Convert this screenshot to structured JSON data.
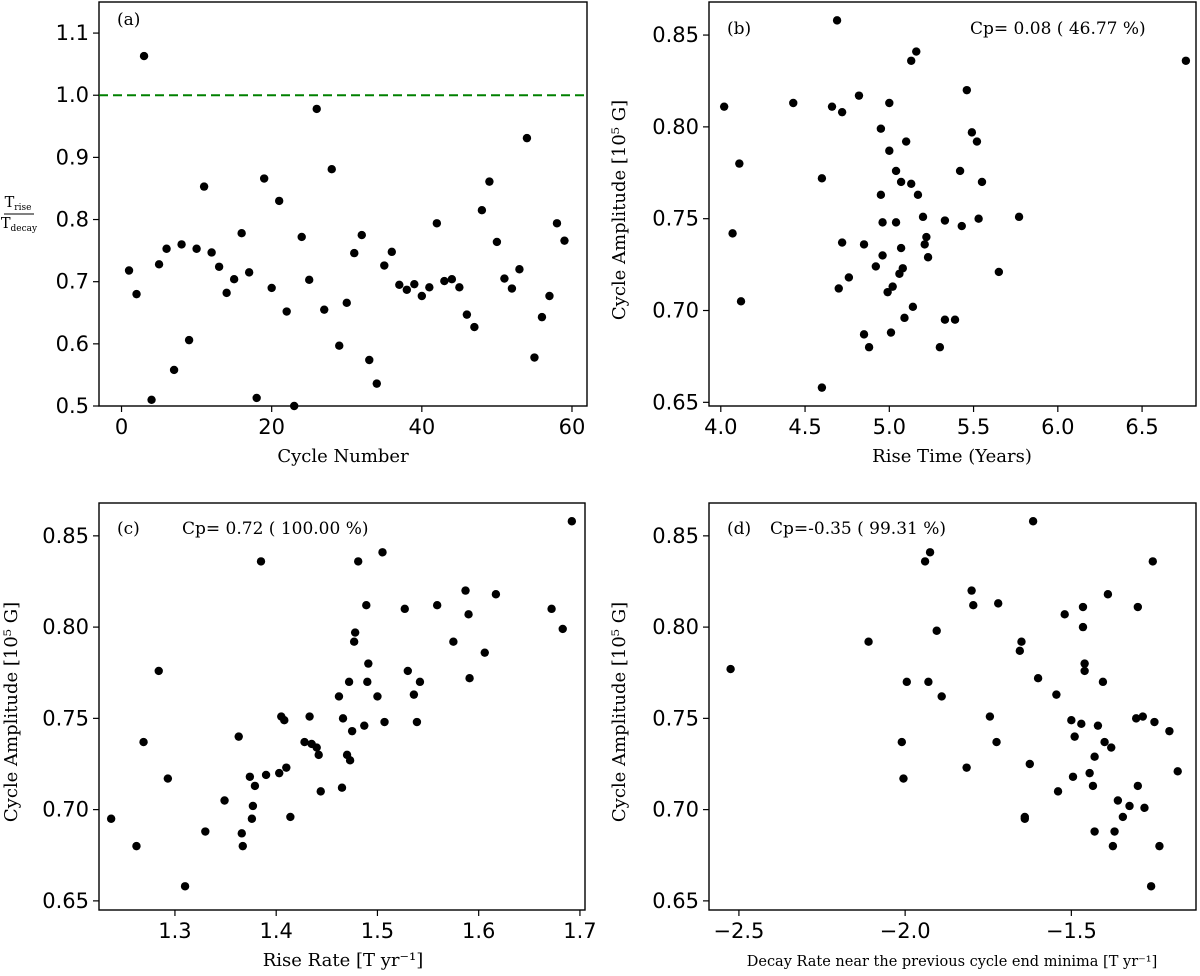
{
  "chart_data": [
    {
      "id": "a",
      "type": "scatter",
      "panel_label": "(a)",
      "annotation": "",
      "xlabel": "Cycle Number",
      "ylabel_num": "T",
      "ylabel_num_sub": "rise",
      "ylabel_den": "T",
      "ylabel_den_sub": "decay",
      "xlim": [
        -3,
        62
      ],
      "ylim": [
        0.5,
        1.15
      ],
      "xticks": [
        0,
        20,
        40,
        60
      ],
      "xtick_labels": [
        "0",
        "20",
        "40",
        "60"
      ],
      "yticks": [
        0.5,
        0.6,
        0.7,
        0.8,
        0.9,
        1.0,
        1.1
      ],
      "ytick_labels": [
        "0.5",
        "0.6",
        "0.7",
        "0.8",
        "0.9",
        "1.0",
        "1.1"
      ],
      "reference_line": {
        "y": 1.0,
        "color": "#008000",
        "style": "dashed"
      },
      "points": [
        [
          1,
          0.718
        ],
        [
          2,
          0.68
        ],
        [
          3,
          1.063
        ],
        [
          4,
          0.51
        ],
        [
          5,
          0.728
        ],
        [
          6,
          0.753
        ],
        [
          7,
          0.558
        ],
        [
          8,
          0.76
        ],
        [
          9,
          0.606
        ],
        [
          10,
          0.753
        ],
        [
          11,
          0.853
        ],
        [
          12,
          0.747
        ],
        [
          13,
          0.724
        ],
        [
          14,
          0.682
        ],
        [
          15,
          0.704
        ],
        [
          16,
          0.778
        ],
        [
          17,
          0.715
        ],
        [
          18,
          0.513
        ],
        [
          19,
          0.866
        ],
        [
          20,
          0.69
        ],
        [
          21,
          0.83
        ],
        [
          22,
          0.652
        ],
        [
          23,
          0.5
        ],
        [
          24,
          0.772
        ],
        [
          25,
          0.703
        ],
        [
          26,
          0.978
        ],
        [
          27,
          0.655
        ],
        [
          28,
          0.881
        ],
        [
          29,
          0.597
        ],
        [
          30,
          0.666
        ],
        [
          31,
          0.746
        ],
        [
          32,
          0.775
        ],
        [
          33,
          0.574
        ],
        [
          34,
          0.536
        ],
        [
          35,
          0.726
        ],
        [
          36,
          0.748
        ],
        [
          37,
          0.695
        ],
        [
          38,
          0.687
        ],
        [
          39,
          0.696
        ],
        [
          40,
          0.677
        ],
        [
          41,
          0.691
        ],
        [
          42,
          0.794
        ],
        [
          43,
          0.701
        ],
        [
          44,
          0.704
        ],
        [
          45,
          0.691
        ],
        [
          46,
          0.647
        ],
        [
          47,
          0.627
        ],
        [
          48,
          0.815
        ],
        [
          49,
          0.861
        ],
        [
          50,
          0.764
        ],
        [
          51,
          0.705
        ],
        [
          52,
          0.689
        ],
        [
          53,
          0.72
        ],
        [
          54,
          0.931
        ],
        [
          55,
          0.578
        ],
        [
          56,
          0.643
        ],
        [
          57,
          0.677
        ],
        [
          58,
          0.794
        ],
        [
          59,
          0.766
        ]
      ]
    },
    {
      "id": "b",
      "type": "scatter",
      "panel_label": "(b)",
      "annotation": "Cp= 0.08 ( 46.77 %)",
      "xlabel": "Rise Time (Years)",
      "ylabel": "Cycle Amplitude [10⁵ G]",
      "xlim": [
        3.93,
        6.82
      ],
      "ylim": [
        0.648,
        0.868
      ],
      "xticks": [
        4.0,
        4.5,
        5.0,
        5.5,
        6.0,
        6.5
      ],
      "xtick_labels": [
        "4.0",
        "4.5",
        "5.0",
        "5.5",
        "6.0",
        "6.5"
      ],
      "yticks": [
        0.65,
        0.7,
        0.75,
        0.8,
        0.85
      ],
      "ytick_labels": [
        "0.65",
        "0.70",
        "0.75",
        "0.80",
        "0.85"
      ],
      "points": [
        [
          4.02,
          0.811
        ],
        [
          4.07,
          0.742
        ],
        [
          4.11,
          0.78
        ],
        [
          4.12,
          0.705
        ],
        [
          4.43,
          0.813
        ],
        [
          4.6,
          0.772
        ],
        [
          4.6,
          0.658
        ],
        [
          4.66,
          0.811
        ],
        [
          4.69,
          0.858
        ],
        [
          4.7,
          0.712
        ],
        [
          4.72,
          0.808
        ],
        [
          4.72,
          0.737
        ],
        [
          4.76,
          0.718
        ],
        [
          4.82,
          0.817
        ],
        [
          4.85,
          0.687
        ],
        [
          4.85,
          0.736
        ],
        [
          4.88,
          0.68
        ],
        [
          4.92,
          0.724
        ],
        [
          4.95,
          0.799
        ],
        [
          4.95,
          0.763
        ],
        [
          4.96,
          0.748
        ],
        [
          4.96,
          0.73
        ],
        [
          4.99,
          0.71
        ],
        [
          5.0,
          0.813
        ],
        [
          5.0,
          0.787
        ],
        [
          5.01,
          0.688
        ],
        [
          5.02,
          0.713
        ],
        [
          5.04,
          0.776
        ],
        [
          5.04,
          0.748
        ],
        [
          5.06,
          0.72
        ],
        [
          5.07,
          0.77
        ],
        [
          5.07,
          0.734
        ],
        [
          5.08,
          0.723
        ],
        [
          5.09,
          0.696
        ],
        [
          5.1,
          0.792
        ],
        [
          5.13,
          0.836
        ],
        [
          5.13,
          0.769
        ],
        [
          5.14,
          0.702
        ],
        [
          5.16,
          0.841
        ],
        [
          5.17,
          0.763
        ],
        [
          5.2,
          0.751
        ],
        [
          5.21,
          0.736
        ],
        [
          5.22,
          0.74
        ],
        [
          5.23,
          0.729
        ],
        [
          5.3,
          0.68
        ],
        [
          5.33,
          0.695
        ],
        [
          5.33,
          0.749
        ],
        [
          5.39,
          0.695
        ],
        [
          5.42,
          0.776
        ],
        [
          5.43,
          0.746
        ],
        [
          5.46,
          0.82
        ],
        [
          5.49,
          0.797
        ],
        [
          5.52,
          0.792
        ],
        [
          5.53,
          0.75
        ],
        [
          5.55,
          0.77
        ],
        [
          5.65,
          0.721
        ],
        [
          5.77,
          0.751
        ],
        [
          6.76,
          0.836
        ]
      ]
    },
    {
      "id": "c",
      "type": "scatter",
      "panel_label": "(c)",
      "annotation": "Cp= 0.72 ( 100.00 %)",
      "xlabel": "Rise Rate [T yr⁻¹]",
      "ylabel": "Cycle Amplitude [10⁵ G]",
      "xlim": [
        1.225,
        1.705
      ],
      "ylim": [
        0.645,
        0.868
      ],
      "xticks": [
        1.3,
        1.4,
        1.5,
        1.6,
        1.7
      ],
      "xtick_labels": [
        "1.3",
        "1.4",
        "1.5",
        "1.6",
        "1.7"
      ],
      "yticks": [
        0.65,
        0.7,
        0.75,
        0.8,
        0.85
      ],
      "ytick_labels": [
        "0.65",
        "0.70",
        "0.75",
        "0.80",
        "0.85"
      ],
      "points": [
        [
          1.237,
          0.695
        ],
        [
          1.262,
          0.68
        ],
        [
          1.269,
          0.737
        ],
        [
          1.284,
          0.776
        ],
        [
          1.293,
          0.717
        ],
        [
          1.31,
          0.658
        ],
        [
          1.33,
          0.688
        ],
        [
          1.349,
          0.705
        ],
        [
          1.363,
          0.74
        ],
        [
          1.366,
          0.687
        ],
        [
          1.367,
          0.68
        ],
        [
          1.374,
          0.718
        ],
        [
          1.376,
          0.695
        ],
        [
          1.377,
          0.702
        ],
        [
          1.379,
          0.713
        ],
        [
          1.385,
          0.836
        ],
        [
          1.39,
          0.719
        ],
        [
          1.403,
          0.72
        ],
        [
          1.405,
          0.751
        ],
        [
          1.408,
          0.749
        ],
        [
          1.41,
          0.723
        ],
        [
          1.414,
          0.696
        ],
        [
          1.428,
          0.737
        ],
        [
          1.433,
          0.751
        ],
        [
          1.435,
          0.736
        ],
        [
          1.44,
          0.734
        ],
        [
          1.442,
          0.73
        ],
        [
          1.444,
          0.71
        ],
        [
          1.462,
          0.762
        ],
        [
          1.465,
          0.712
        ],
        [
          1.466,
          0.75
        ],
        [
          1.47,
          0.73
        ],
        [
          1.472,
          0.77
        ],
        [
          1.473,
          0.727
        ],
        [
          1.475,
          0.743
        ],
        [
          1.477,
          0.792
        ],
        [
          1.478,
          0.797
        ],
        [
          1.481,
          0.836
        ],
        [
          1.487,
          0.746
        ],
        [
          1.489,
          0.812
        ],
        [
          1.49,
          0.77
        ],
        [
          1.491,
          0.78
        ],
        [
          1.5,
          0.762
        ],
        [
          1.505,
          0.841
        ],
        [
          1.507,
          0.748
        ],
        [
          1.527,
          0.81
        ],
        [
          1.53,
          0.776
        ],
        [
          1.536,
          0.763
        ],
        [
          1.539,
          0.748
        ],
        [
          1.542,
          0.77
        ],
        [
          1.559,
          0.812
        ],
        [
          1.575,
          0.792
        ],
        [
          1.587,
          0.82
        ],
        [
          1.59,
          0.807
        ],
        [
          1.591,
          0.772
        ],
        [
          1.606,
          0.786
        ],
        [
          1.617,
          0.818
        ],
        [
          1.672,
          0.81
        ],
        [
          1.683,
          0.799
        ],
        [
          1.692,
          0.858
        ]
      ]
    },
    {
      "id": "d",
      "type": "scatter",
      "panel_label": "(d)",
      "annotation": "Cp=-0.35 ( 99.31 %)",
      "xlabel": "Decay Rate near the previous cycle end minima [T yr⁻¹]",
      "ylabel": "Cycle Amplitude [10⁵ G]",
      "xlim": [
        -2.59,
        -1.125
      ],
      "ylim": [
        0.645,
        0.868
      ],
      "xticks": [
        -2.5,
        -2.0,
        -1.5
      ],
      "xtick_labels": [
        "−2.5",
        "−2.0",
        "−1.5"
      ],
      "yticks": [
        0.65,
        0.7,
        0.75,
        0.8,
        0.85
      ],
      "ytick_labels": [
        "0.65",
        "0.70",
        "0.75",
        "0.80",
        "0.85"
      ],
      "points": [
        [
          -2.525,
          0.777
        ],
        [
          -2.11,
          0.792
        ],
        [
          -2.01,
          0.737
        ],
        [
          -2.005,
          0.717
        ],
        [
          -1.995,
          0.77
        ],
        [
          -1.94,
          0.836
        ],
        [
          -1.93,
          0.77
        ],
        [
          -1.925,
          0.841
        ],
        [
          -1.905,
          0.798
        ],
        [
          -1.89,
          0.762
        ],
        [
          -1.815,
          0.723
        ],
        [
          -1.8,
          0.82
        ],
        [
          -1.795,
          0.812
        ],
        [
          -1.745,
          0.751
        ],
        [
          -1.725,
          0.737
        ],
        [
          -1.72,
          0.813
        ],
        [
          -1.655,
          0.787
        ],
        [
          -1.65,
          0.792
        ],
        [
          -1.64,
          0.695
        ],
        [
          -1.64,
          0.696
        ],
        [
          -1.625,
          0.725
        ],
        [
          -1.615,
          0.858
        ],
        [
          -1.6,
          0.772
        ],
        [
          -1.545,
          0.763
        ],
        [
          -1.54,
          0.71
        ],
        [
          -1.52,
          0.807
        ],
        [
          -1.5,
          0.749
        ],
        [
          -1.495,
          0.718
        ],
        [
          -1.49,
          0.74
        ],
        [
          -1.47,
          0.747
        ],
        [
          -1.465,
          0.811
        ],
        [
          -1.465,
          0.8
        ],
        [
          -1.46,
          0.776
        ],
        [
          -1.46,
          0.78
        ],
        [
          -1.445,
          0.72
        ],
        [
          -1.435,
          0.713
        ],
        [
          -1.43,
          0.729
        ],
        [
          -1.43,
          0.688
        ],
        [
          -1.42,
          0.746
        ],
        [
          -1.405,
          0.77
        ],
        [
          -1.4,
          0.737
        ],
        [
          -1.39,
          0.818
        ],
        [
          -1.38,
          0.734
        ],
        [
          -1.375,
          0.68
        ],
        [
          -1.37,
          0.688
        ],
        [
          -1.36,
          0.705
        ],
        [
          -1.345,
          0.696
        ],
        [
          -1.325,
          0.702
        ],
        [
          -1.305,
          0.75
        ],
        [
          -1.3,
          0.811
        ],
        [
          -1.3,
          0.713
        ],
        [
          -1.285,
          0.751
        ],
        [
          -1.28,
          0.701
        ],
        [
          -1.26,
          0.658
        ],
        [
          -1.255,
          0.836
        ],
        [
          -1.25,
          0.748
        ],
        [
          -1.235,
          0.68
        ],
        [
          -1.205,
          0.743
        ],
        [
          -1.18,
          0.721
        ]
      ]
    }
  ]
}
